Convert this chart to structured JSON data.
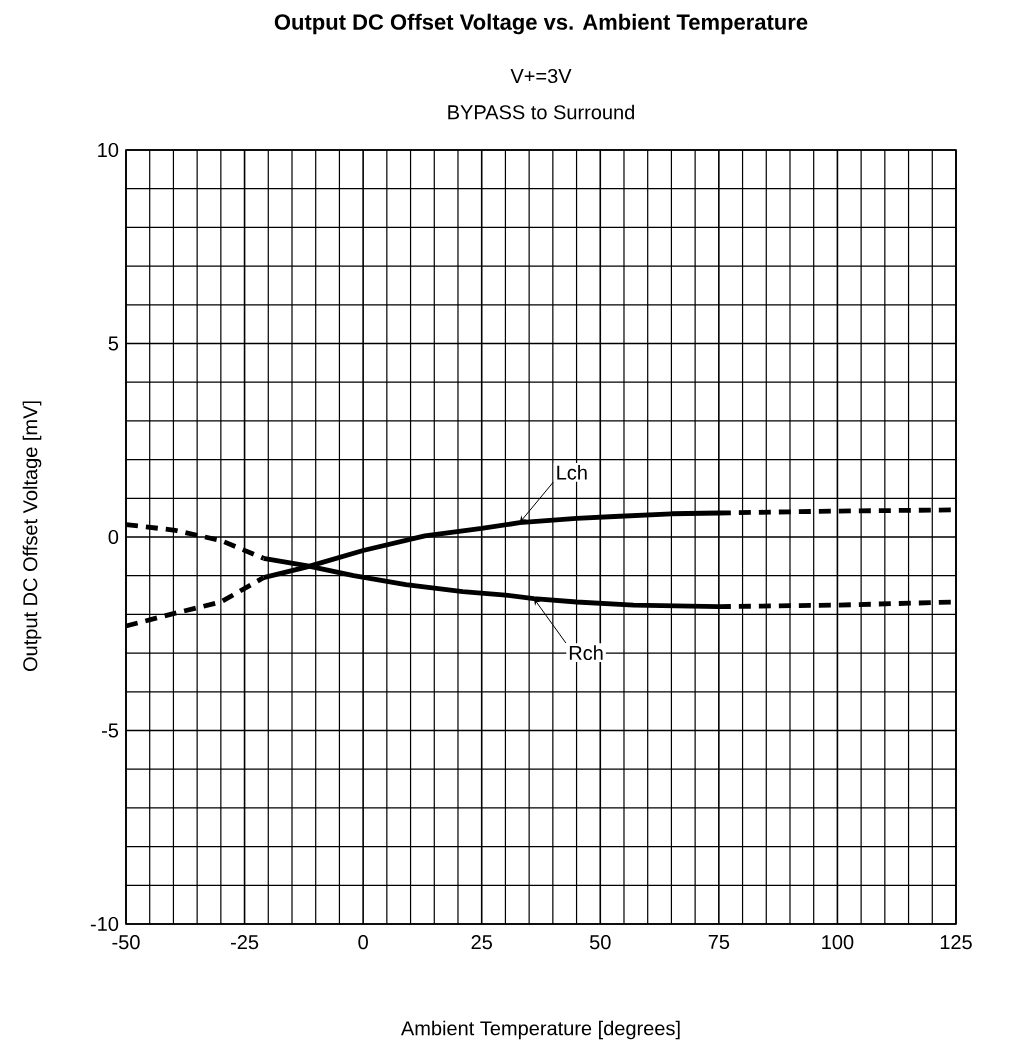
{
  "chart_data": {
    "type": "line",
    "title": "Output DC Offset Voltage vs. Ambient Temperature",
    "subtitle": "V+=3V",
    "xlabel": "Ambient Temperature [degrees]",
    "ylabel": "Output DC Offset Voltage [mV]",
    "xlim": [
      -50,
      125
    ],
    "ylim": [
      -10,
      10
    ],
    "xticks": [
      -50,
      -25,
      0,
      25,
      50,
      75,
      100,
      125
    ],
    "yticks": [
      -10,
      -5,
      0,
      5,
      10
    ],
    "grid": true,
    "series": [
      {
        "color": "#000000",
        "line_style": "dashed",
        "x": [
          -50,
          -40,
          -30,
          -21
        ],
        "values": [
          -2.3,
          -1.98,
          -1.68,
          -1.05
        ]
      },
      {
        "color": "#000000",
        "line_style": "solid",
        "x": [
          -21,
          -12,
          0,
          13,
          25,
          33,
          45,
          53,
          65,
          75
        ],
        "values": [
          -1.05,
          -0.78,
          -0.35,
          0.03,
          0.22,
          0.37,
          0.48,
          0.53,
          0.6,
          0.62
        ]
      },
      {
        "color": "#000000",
        "line_style": "dashed",
        "x": [
          75,
          100,
          125
        ],
        "values": [
          0.62,
          0.67,
          0.7
        ]
      },
      {
        "color": "#000000",
        "line_style": "dashed",
        "x": [
          -50,
          -40,
          -30,
          -21
        ],
        "values": [
          0.32,
          0.18,
          -0.09,
          -0.55
        ]
      },
      {
        "color": "#000000",
        "line_style": "solid",
        "x": [
          -21,
          -12,
          -2,
          9,
          21,
          30,
          36,
          45,
          57,
          75
        ],
        "values": [
          -0.55,
          -0.74,
          -1.0,
          -1.23,
          -1.41,
          -1.5,
          -1.59,
          -1.68,
          -1.76,
          -1.8
        ]
      },
      {
        "color": "#000000",
        "line_style": "dashed",
        "x": [
          75,
          100,
          125
        ],
        "values": [
          -1.8,
          -1.76,
          -1.68
        ]
      }
    ],
    "annotations": [
      "BYPASS to Surround",
      {
        "text": "Lch",
        "x": 33,
        "y": 0.37
      },
      {
        "text": "Rch",
        "x": 36,
        "y": -1.59
      }
    ]
  }
}
